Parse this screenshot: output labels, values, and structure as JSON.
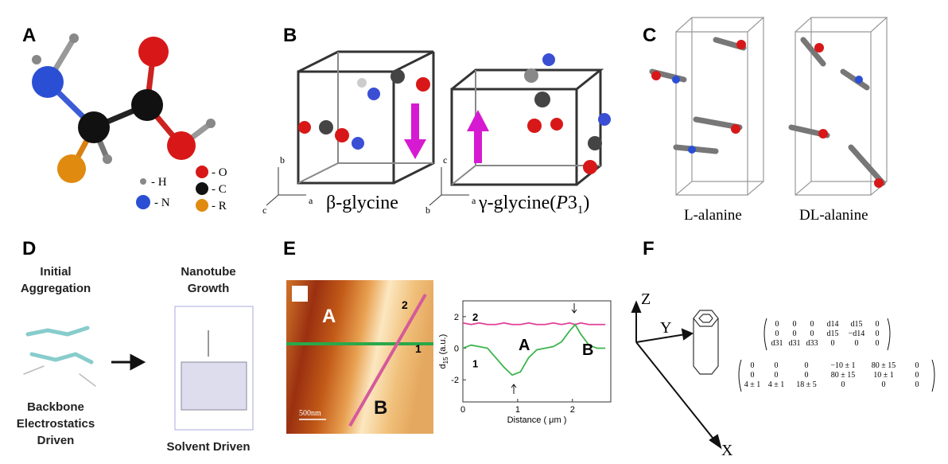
{
  "panels": {
    "A": {
      "label": "A",
      "legend": [
        "- H",
        "- N",
        "- O",
        "- C",
        "- R"
      ]
    },
    "B": {
      "label": "B",
      "beta": "β-glycine",
      "gamma": [
        "γ-glycine(",
        "P",
        "3",
        "1",
        ")"
      ],
      "axes1": [
        "b",
        "a",
        "c"
      ],
      "axes2": [
        "c",
        "a",
        "b"
      ]
    },
    "C": {
      "label": "C",
      "names": [
        "L-alanine",
        "DL-alanine"
      ]
    },
    "D": {
      "label": "D",
      "top": [
        [
          "Initial",
          "Aggregation"
        ],
        [
          "Nanotube",
          "Growth"
        ]
      ],
      "bottom": [
        [
          "Backbone",
          "Electrostatics",
          "Driven"
        ],
        [
          "Solvent Driven"
        ]
      ]
    },
    "E": {
      "label": "E",
      "image_labels": [
        "A",
        "B",
        "1",
        "2"
      ],
      "scale": "500nm"
    },
    "F": {
      "label": "F",
      "axes": [
        "Z",
        "Y",
        "X"
      ],
      "matrix1": [
        [
          "0",
          "0",
          "0",
          "d14",
          "d15",
          "0"
        ],
        [
          "0",
          "0",
          "0",
          "d15",
          "−d14",
          "0"
        ],
        [
          "d31",
          "d31",
          "d33",
          "0",
          "0",
          "0"
        ]
      ],
      "matrix2": [
        [
          "0",
          "0",
          "0",
          "−10 ± 1",
          "80 ± 15",
          "0"
        ],
        [
          "0",
          "0",
          "0",
          "80 ± 15",
          "10 ± 1",
          "0"
        ],
        [
          "4 ± 1",
          "4 ± 1",
          "18 ± 5",
          "0",
          "0",
          "0"
        ]
      ]
    }
  },
  "chart_data": {
    "type": "line",
    "xlabel": "Distance ( μm )",
    "ylabel": [
      "d",
      "15",
      " (a.u.)"
    ],
    "x": [
      0,
      0.15,
      0.3,
      0.45,
      0.6,
      0.75,
      0.9,
      1.05,
      1.2,
      1.35,
      1.5,
      1.65,
      1.8,
      1.95,
      2.05,
      2.15,
      2.3,
      2.45,
      2.6
    ],
    "series": [
      {
        "name": "2",
        "color": "#e0409a",
        "values": [
          1.6,
          1.5,
          1.6,
          1.5,
          1.5,
          1.6,
          1.5,
          1.5,
          1.6,
          1.5,
          1.5,
          1.6,
          1.5,
          1.6,
          1.5,
          1.6,
          1.5,
          1.5,
          1.5
        ]
      },
      {
        "name": "1",
        "color": "#3cb44b",
        "values": [
          0,
          0.2,
          0.1,
          0,
          -0.6,
          -1.2,
          -1.7,
          -1.5,
          -0.6,
          -0.1,
          0,
          0.1,
          0.4,
          1.1,
          1.5,
          0.9,
          0.2,
          0,
          0
        ]
      }
    ],
    "annotations": [
      "A",
      "B"
    ],
    "xlim": [
      0,
      2.7
    ],
    "ylim": [
      -3.4,
      3
    ],
    "xticks": [
      0,
      1,
      2
    ],
    "yticks": [
      -2,
      0,
      2
    ]
  }
}
